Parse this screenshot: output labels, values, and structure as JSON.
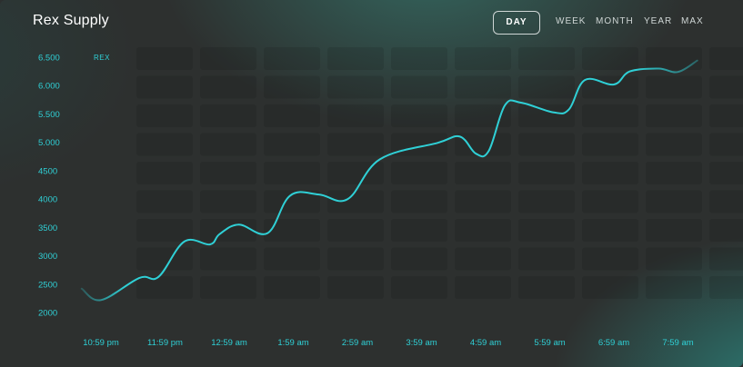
{
  "header": {
    "title": "Rex Supply",
    "ranges": [
      "DAY",
      "WEEK",
      "MONTH",
      "YEAR",
      "MAX"
    ],
    "active_range": "DAY"
  },
  "colors": {
    "line": "#2fd0d6",
    "ticks": "#2fd0d6",
    "panel": "#2d302f",
    "accent_glow": "#2c7d76"
  },
  "chart_data": {
    "type": "line",
    "title": "Rex Supply",
    "series_label": "REX",
    "grid": true,
    "ylim": [
      2000,
      6500
    ],
    "x_ticks": [
      "10:59 pm",
      "11:59 pm",
      "12:59 am",
      "1:59 am",
      "2:59 am",
      "3:59 am",
      "4:59 am",
      "5:59 am",
      "6:59 am",
      "7:59 am"
    ],
    "y_ticks": [
      {
        "value": 2000,
        "label": "2000"
      },
      {
        "value": 2500,
        "label": "2500"
      },
      {
        "value": 3000,
        "label": "3000"
      },
      {
        "value": 3500,
        "label": "3500"
      },
      {
        "value": 4000,
        "label": "4000"
      },
      {
        "value": 4500,
        "label": "4500"
      },
      {
        "value": 5000,
        "label": "5.000"
      },
      {
        "value": 5500,
        "label": "5.500"
      },
      {
        "value": 6000,
        "label": "6.000"
      },
      {
        "value": 6500,
        "label": "6.500"
      }
    ],
    "series": [
      {
        "x": [
          -0.3,
          0,
          0.6,
          0.9,
          1.3,
          1.7,
          1.85,
          2.15,
          2.6,
          2.95,
          3.4,
          3.85,
          4.35,
          5.25,
          5.6,
          5.85,
          6.05,
          6.3,
          6.55,
          7.05,
          7.3,
          7.55,
          8.0,
          8.25,
          8.7,
          9.0,
          9.3
        ],
        "y": [
          2420,
          2220,
          2610,
          2630,
          3250,
          3200,
          3380,
          3550,
          3400,
          4060,
          4080,
          4000,
          4700,
          4990,
          5100,
          4800,
          4850,
          5650,
          5700,
          5530,
          5580,
          6100,
          6020,
          6250,
          6300,
          6240,
          6440
        ]
      }
    ]
  }
}
